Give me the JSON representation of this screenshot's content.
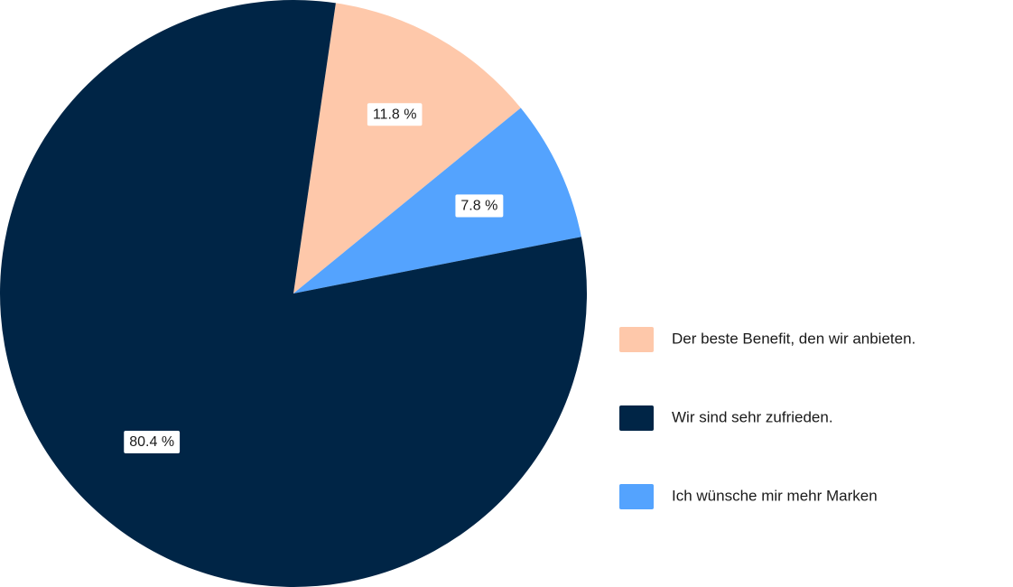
{
  "chart_data": {
    "type": "pie",
    "categories": [
      "Der beste Benefit, den wir anbieten.",
      "Wir sind sehr zufrieden.",
      "Ich wünsche mir mehr Marken"
    ],
    "values": [
      11.8,
      80.4,
      7.8
    ],
    "value_labels": [
      "11.8 %",
      "80.4 %",
      "7.8 %"
    ],
    "colors": [
      "#fec8aa",
      "#002546",
      "#54a3fe"
    ],
    "legend": "right"
  }
}
